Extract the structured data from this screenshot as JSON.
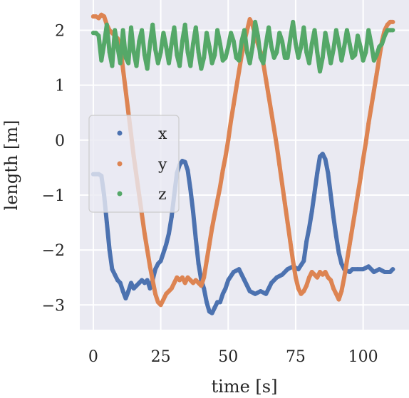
{
  "chart_data": {
    "type": "line",
    "title": "",
    "xlabel": "time [s]",
    "ylabel": "length [m]",
    "xlim": [
      -5,
      117
    ],
    "ylim": [
      -3.45,
      2.55
    ],
    "xticks": [
      0,
      25,
      50,
      75,
      100
    ],
    "xtick_labels": [
      "0",
      "25",
      "50",
      "75",
      "100"
    ],
    "yticks": [
      -3,
      -2,
      -1,
      0,
      1,
      2
    ],
    "ytick_labels": [
      "−3",
      "−2",
      "−1",
      "0",
      "1",
      "2"
    ],
    "grid": true,
    "legend_position": "center-left",
    "series": [
      {
        "name": "x",
        "color": "#4c72b0",
        "x": [
          0,
          2,
          3,
          4,
          5,
          6,
          7,
          8,
          9,
          10,
          11,
          12,
          13,
          14,
          15,
          16,
          17,
          18,
          19,
          20,
          21,
          22,
          23,
          24,
          25,
          26,
          27,
          28,
          29,
          30,
          31,
          32,
          33,
          34,
          35,
          36,
          37,
          38,
          39,
          40,
          41,
          42,
          43,
          44,
          45,
          46,
          47,
          48,
          49,
          50,
          52,
          54,
          56,
          58,
          60,
          62,
          64,
          66,
          68,
          70,
          72,
          74,
          76,
          78,
          79,
          80,
          81,
          82,
          83,
          84,
          85,
          86,
          87,
          88,
          89,
          90,
          91,
          92,
          93,
          94,
          95,
          96,
          98,
          100,
          102,
          104,
          106,
          108,
          110,
          111
        ],
        "values": [
          -0.62,
          -0.62,
          -0.65,
          -1.0,
          -1.5,
          -2.0,
          -2.35,
          -2.45,
          -2.55,
          -2.6,
          -2.75,
          -2.88,
          -2.75,
          -2.6,
          -2.7,
          -2.65,
          -2.6,
          -2.55,
          -2.6,
          -2.55,
          -2.7,
          -2.55,
          -2.35,
          -2.25,
          -2.2,
          -2.05,
          -1.9,
          -1.7,
          -1.4,
          -1.0,
          -0.6,
          -0.45,
          -0.38,
          -0.4,
          -0.55,
          -0.9,
          -1.3,
          -1.8,
          -2.25,
          -2.55,
          -2.7,
          -2.95,
          -3.12,
          -3.15,
          -3.05,
          -2.95,
          -2.95,
          -2.8,
          -2.7,
          -2.55,
          -2.4,
          -2.35,
          -2.55,
          -2.75,
          -2.8,
          -2.75,
          -2.8,
          -2.6,
          -2.5,
          -2.45,
          -2.35,
          -2.3,
          -2.35,
          -2.2,
          -1.85,
          -1.6,
          -1.3,
          -0.95,
          -0.6,
          -0.3,
          -0.25,
          -0.35,
          -0.6,
          -1.0,
          -1.4,
          -1.75,
          -2.05,
          -2.25,
          -2.35,
          -2.38,
          -2.4,
          -2.35,
          -2.35,
          -2.35,
          -2.3,
          -2.4,
          -2.35,
          -2.4,
          -2.4,
          -2.35
        ]
      },
      {
        "name": "y",
        "color": "#dd8452",
        "x": [
          0,
          1,
          2,
          3,
          4,
          5,
          6,
          7,
          8,
          9,
          10,
          11,
          12,
          13,
          14,
          15,
          16,
          17,
          18,
          19,
          20,
          21,
          22,
          23,
          24,
          25,
          26,
          27,
          28,
          29,
          30,
          31,
          32,
          33,
          34,
          35,
          36,
          37,
          38,
          39,
          40,
          41,
          42,
          43,
          44,
          45,
          46,
          47,
          48,
          49,
          50,
          51,
          52,
          53,
          54,
          55,
          56,
          57,
          58,
          59,
          60,
          61,
          62,
          63,
          64,
          65,
          66,
          67,
          68,
          69,
          70,
          71,
          72,
          73,
          74,
          75,
          76,
          77,
          78,
          79,
          80,
          81,
          82,
          83,
          84,
          85,
          86,
          87,
          88,
          89,
          90,
          91,
          92,
          93,
          94,
          95,
          96,
          97,
          98,
          99,
          100,
          101,
          102,
          103,
          104,
          105,
          106,
          107,
          108,
          109,
          110,
          111
        ],
        "values": [
          2.25,
          2.25,
          2.22,
          2.28,
          2.25,
          2.1,
          2.0,
          1.95,
          1.9,
          1.85,
          1.7,
          1.3,
          0.9,
          0.5,
          0.1,
          -0.3,
          -0.65,
          -1.0,
          -1.35,
          -1.7,
          -2.0,
          -2.3,
          -2.55,
          -2.8,
          -2.95,
          -3.0,
          -2.9,
          -2.8,
          -2.75,
          -2.7,
          -2.6,
          -2.5,
          -2.55,
          -2.5,
          -2.6,
          -2.5,
          -2.55,
          -2.6,
          -2.55,
          -2.6,
          -2.65,
          -2.5,
          -2.2,
          -1.9,
          -1.6,
          -1.35,
          -1.1,
          -0.85,
          -0.55,
          -0.3,
          0.0,
          0.35,
          0.65,
          0.95,
          1.25,
          1.55,
          1.8,
          2.0,
          2.2,
          2.1,
          1.9,
          1.75,
          1.6,
          1.4,
          1.1,
          0.8,
          0.5,
          0.2,
          -0.1,
          -0.45,
          -0.8,
          -1.15,
          -1.5,
          -1.85,
          -2.2,
          -2.5,
          -2.7,
          -2.8,
          -2.75,
          -2.65,
          -2.5,
          -2.4,
          -2.45,
          -2.5,
          -2.4,
          -2.45,
          -2.4,
          -2.5,
          -2.55,
          -2.7,
          -2.8,
          -2.9,
          -2.75,
          -2.5,
          -2.2,
          -1.9,
          -1.6,
          -1.3,
          -1.0,
          -0.7,
          -0.35,
          -0.05,
          0.3,
          0.6,
          0.9,
          1.2,
          1.5,
          1.8,
          2.0,
          2.1,
          2.15,
          2.15
        ]
      },
      {
        "name": "z",
        "color": "#55a868",
        "x": [
          0,
          1,
          2,
          3,
          4,
          5,
          6,
          7,
          8,
          9,
          10,
          11,
          12,
          13,
          14,
          15,
          16,
          17,
          18,
          19,
          20,
          21,
          22,
          23,
          24,
          25,
          26,
          27,
          28,
          29,
          30,
          31,
          32,
          33,
          34,
          35,
          36,
          37,
          38,
          39,
          40,
          41,
          42,
          43,
          44,
          45,
          46,
          47,
          48,
          49,
          50,
          51,
          52,
          53,
          54,
          55,
          56,
          57,
          58,
          59,
          60,
          61,
          62,
          63,
          64,
          65,
          66,
          67,
          68,
          69,
          70,
          71,
          72,
          73,
          74,
          75,
          76,
          77,
          78,
          79,
          80,
          81,
          82,
          83,
          84,
          85,
          86,
          87,
          88,
          89,
          90,
          91,
          92,
          93,
          94,
          95,
          96,
          97,
          98,
          99,
          100,
          101,
          102,
          103,
          104,
          105,
          106,
          107,
          108,
          109,
          110,
          111
        ],
        "values": [
          1.95,
          1.95,
          1.9,
          1.45,
          1.75,
          2.1,
          1.6,
          1.35,
          2.0,
          1.7,
          1.4,
          2.0,
          1.5,
          1.4,
          2.05,
          1.6,
          1.35,
          1.8,
          2.0,
          1.55,
          1.3,
          1.75,
          2.1,
          1.65,
          1.4,
          1.6,
          1.95,
          1.7,
          1.4,
          1.75,
          2.05,
          1.55,
          1.35,
          1.8,
          2.1,
          1.6,
          1.35,
          1.75,
          2.05,
          1.6,
          1.3,
          1.5,
          1.95,
          1.7,
          1.4,
          1.55,
          2.0,
          1.75,
          1.45,
          1.5,
          1.7,
          1.95,
          1.8,
          1.5,
          1.45,
          1.8,
          2.0,
          1.6,
          1.4,
          1.7,
          2.15,
          1.9,
          1.5,
          1.4,
          1.75,
          2.05,
          1.7,
          1.5,
          1.6,
          1.95,
          1.8,
          1.5,
          1.5,
          1.85,
          2.15,
          1.75,
          1.5,
          1.7,
          2.05,
          1.6,
          1.4,
          1.75,
          2.0,
          1.6,
          1.25,
          1.5,
          1.95,
          1.7,
          1.4,
          1.65,
          2.0,
          1.75,
          1.45,
          1.7,
          2.0,
          1.75,
          1.5,
          1.55,
          1.9,
          1.7,
          1.45,
          1.6,
          2.0,
          1.75,
          1.45,
          1.55,
          1.7,
          1.75,
          1.9,
          2.0,
          2.0,
          2.0
        ]
      }
    ]
  }
}
